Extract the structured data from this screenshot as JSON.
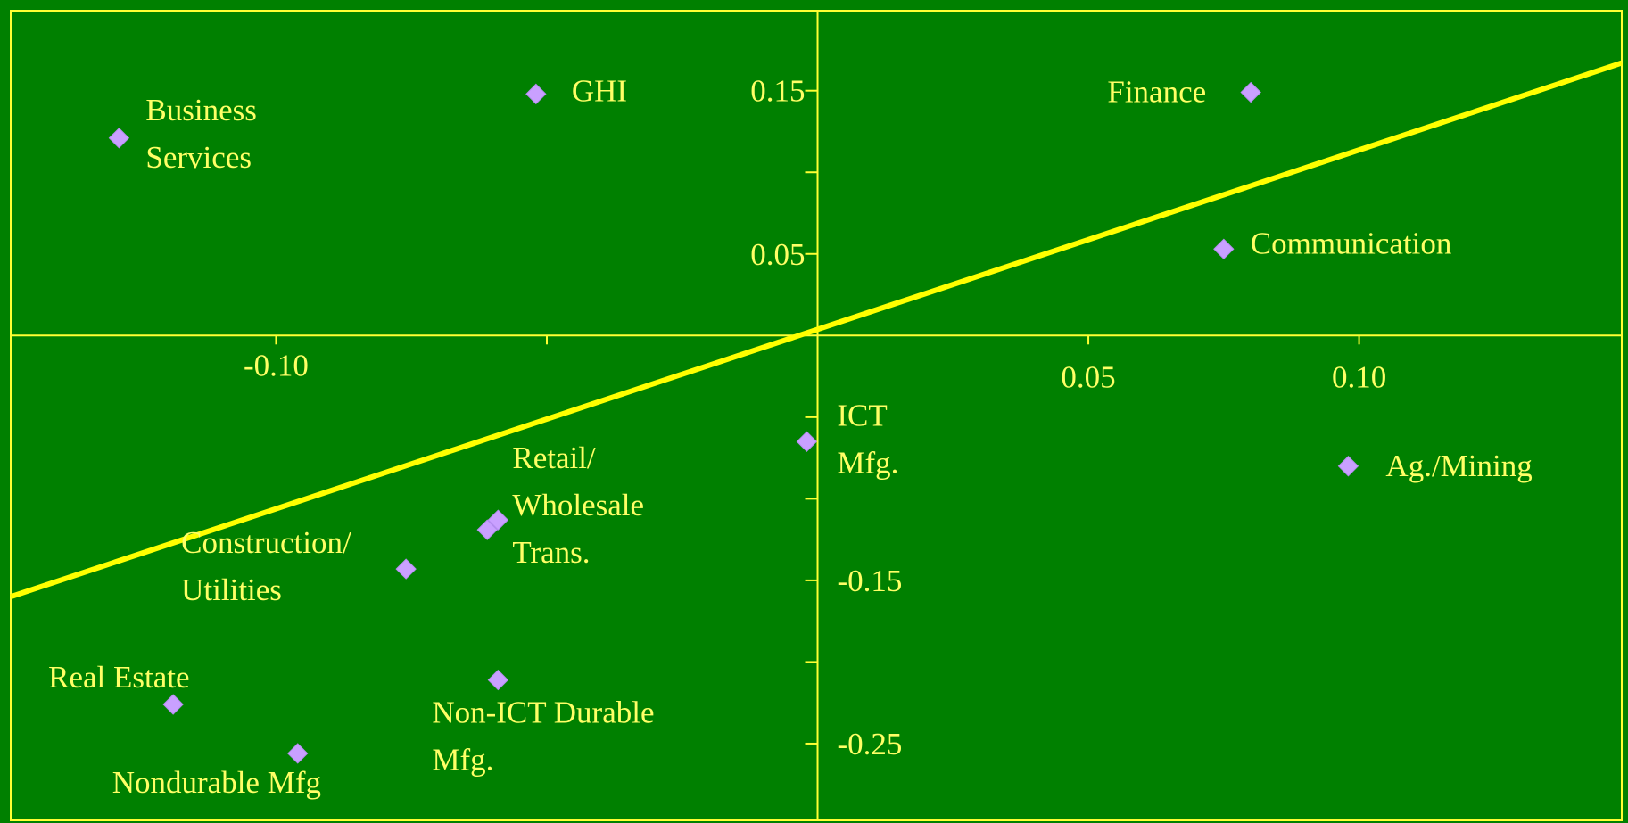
{
  "chart_data": {
    "type": "scatter",
    "title": "",
    "xlabel": "",
    "ylabel": "",
    "xlim": [
      -0.149,
      0.1485
    ],
    "ylim": [
      -0.297,
      0.199
    ],
    "grid": false,
    "legend": "none",
    "colors": {
      "background": "#008000",
      "axis": "#ffff33",
      "text": "#ffff66",
      "marker": "#c9a0ff",
      "trendline": "#ffff00"
    },
    "x_ticks": [
      -0.1,
      -0.05,
      0.0,
      0.05,
      0.1
    ],
    "x_tick_labels": [
      "-0.10",
      "",
      "",
      "0.05",
      "0.10"
    ],
    "y_ticks": [
      0.15,
      0.1,
      0.05,
      -0.05,
      -0.1,
      -0.15,
      -0.2,
      -0.25
    ],
    "y_tick_labels": [
      "0.15",
      "",
      "0.05",
      "",
      "",
      "-0.15",
      "",
      "-0.25"
    ],
    "points": [
      {
        "label": "Business\nServices",
        "x": -0.129,
        "y": 0.121
      },
      {
        "label": "GHI",
        "x": -0.052,
        "y": 0.148
      },
      {
        "label": "Finance",
        "x": 0.08,
        "y": 0.149
      },
      {
        "label": "Communication",
        "x": 0.075,
        "y": 0.053
      },
      {
        "label": "ICT\nMfg.",
        "x": -0.002,
        "y": -0.065
      },
      {
        "label": "Ag./Mining",
        "x": 0.098,
        "y": -0.08
      },
      {
        "label": "Retail/\nWholesale\nTrans.",
        "x": -0.059,
        "y": -0.113
      },
      {
        "label": "",
        "x": -0.061,
        "y": -0.119
      },
      {
        "label": "Construction/\nUtilities",
        "x": -0.076,
        "y": -0.143
      },
      {
        "label": "Non-ICT Durable\nMfg.",
        "x": -0.059,
        "y": -0.211
      },
      {
        "label": "Real Estate",
        "x": -0.119,
        "y": -0.226
      },
      {
        "label": "Nondurable Mfg",
        "x": -0.096,
        "y": -0.256
      }
    ],
    "trendline": {
      "x": [
        -0.149,
        0.1485
      ],
      "y": [
        -0.16,
        0.167
      ]
    }
  }
}
